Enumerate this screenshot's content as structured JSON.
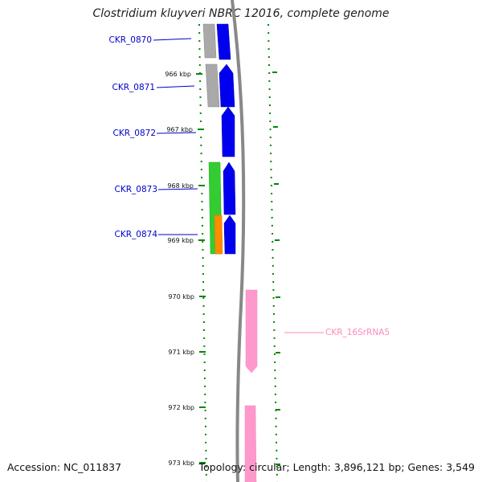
{
  "title": "Clostridium kluyveri NBRC 12016, complete genome",
  "footer": {
    "accession": "Accession: NC_011837",
    "summary": "Topology: circular; Length: 3,896,121 bp; Genes: 3,549"
  },
  "colors": {
    "cds": "#0000ee",
    "gray_feature": "#a9a9a9",
    "green_feature": "#33cc33",
    "orange_feature": "#ff8c00",
    "rrna": "#ff99cc",
    "label_blue": "#0000cc",
    "label_pink": "#ff88bb",
    "tick_green": "#008800",
    "backbone": "#888888"
  },
  "ticks": [
    {
      "label": "966 kbp",
      "kbp": 966
    },
    {
      "label": "967 kbp",
      "kbp": 967
    },
    {
      "label": "968 kbp",
      "kbp": 968
    },
    {
      "label": "969 kbp",
      "kbp": 969
    },
    {
      "label": "970 kbp",
      "kbp": 970
    },
    {
      "label": "971 kbp",
      "kbp": 971
    },
    {
      "label": "972 kbp",
      "kbp": 972
    },
    {
      "label": "973 kbp",
      "kbp": 973
    }
  ],
  "gene_labels": [
    {
      "text": "CKR_0870",
      "kind": "cds"
    },
    {
      "text": "CKR_0871",
      "kind": "cds"
    },
    {
      "text": "CKR_0872",
      "kind": "cds"
    },
    {
      "text": "CKR_0873",
      "kind": "cds"
    },
    {
      "text": "CKR_0874",
      "kind": "cds"
    },
    {
      "text": "CKR_16SrRNA5",
      "kind": "rrna"
    }
  ]
}
